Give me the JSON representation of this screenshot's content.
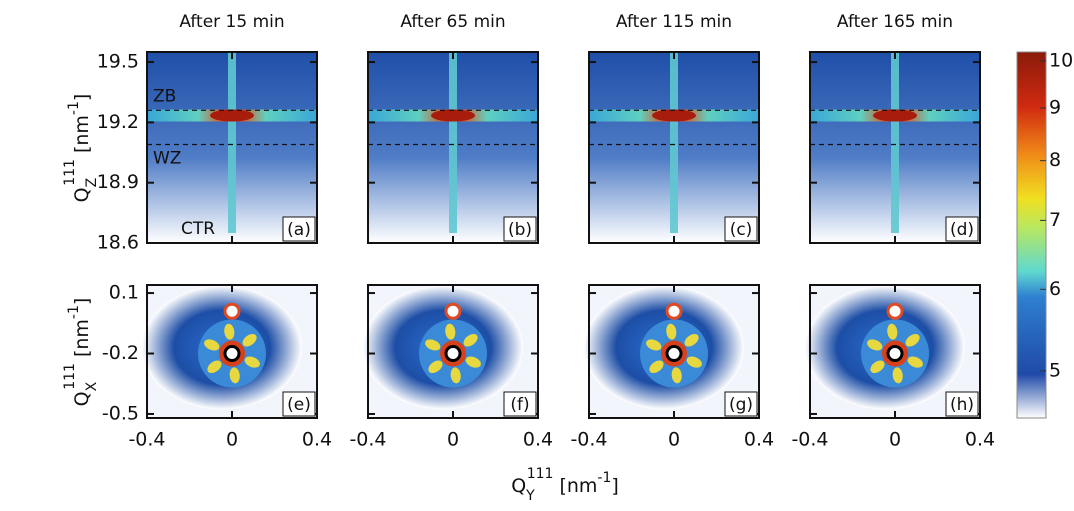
{
  "figure": {
    "x_label": {
      "symbol": "Q",
      "subscript": "Y",
      "superscript": "111",
      "unit": "[nm",
      "unit_exp": "-1",
      "unit_end": "]"
    },
    "y_label_top": {
      "symbol": "Q",
      "subscript": "Z",
      "superscript": "111",
      "unit": "[nm",
      "unit_exp": "-1",
      "unit_end": "]"
    },
    "y_label_bottom": {
      "symbol": "Q",
      "subscript": "X",
      "superscript": "111",
      "unit": "[nm",
      "unit_exp": "-1",
      "unit_end": "]"
    },
    "colorbar": {
      "clim": [
        4.5,
        10.2
      ],
      "ticks": [
        5,
        6,
        7,
        8,
        9,
        10
      ],
      "log_scale": true
    }
  },
  "chart_data": [
    {
      "type": "heatmap",
      "title": "After 15 min",
      "panel_label": "(a)",
      "xlim": [
        -0.4,
        0.4
      ],
      "xticks": [
        -0.4,
        0,
        0.4
      ],
      "ylim": [
        18.6,
        19.55
      ],
      "yticks": [
        18.6,
        18.9,
        19.2,
        19.5
      ],
      "reference_lines": [
        19.26,
        19.09
      ],
      "annotations": [
        "ZB",
        "WZ",
        "CTR"
      ]
    },
    {
      "type": "heatmap",
      "title": "After 65 min",
      "panel_label": "(b)",
      "xlim": [
        -0.4,
        0.4
      ],
      "xticks": [
        -0.4,
        0,
        0.4
      ],
      "ylim": [
        18.6,
        19.55
      ],
      "yticks": [
        18.6,
        18.9,
        19.2,
        19.5
      ],
      "reference_lines": [
        19.26,
        19.09
      ]
    },
    {
      "type": "heatmap",
      "title": "After 115 min",
      "panel_label": "(c)",
      "xlim": [
        -0.4,
        0.4
      ],
      "xticks": [
        -0.4,
        0,
        0.4
      ],
      "ylim": [
        18.6,
        19.55
      ],
      "yticks": [
        18.6,
        18.9,
        19.2,
        19.5
      ],
      "reference_lines": [
        19.26,
        19.09
      ]
    },
    {
      "type": "heatmap",
      "title": "After 165 min",
      "panel_label": "(d)",
      "xlim": [
        -0.4,
        0.4
      ],
      "xticks": [
        -0.4,
        0,
        0.4
      ],
      "ylim": [
        18.6,
        19.55
      ],
      "yticks": [
        18.6,
        18.9,
        19.2,
        19.5
      ],
      "reference_lines": [
        19.26,
        19.09
      ]
    },
    {
      "type": "heatmap",
      "panel_label": "(e)",
      "xlim": [
        -0.4,
        0.4
      ],
      "xticks": [
        -0.4,
        0,
        0.4
      ],
      "ylim": [
        -0.52,
        0.14
      ],
      "yticks": [
        -0.5,
        -0.2,
        0.1
      ],
      "markers": [
        {
          "x": 0,
          "y": 0.01,
          "color": "#e04a22"
        },
        {
          "x": 0,
          "y": -0.2,
          "color": "#000000"
        }
      ]
    },
    {
      "type": "heatmap",
      "panel_label": "(f)",
      "xlim": [
        -0.4,
        0.4
      ],
      "xticks": [
        -0.4,
        0,
        0.4
      ],
      "ylim": [
        -0.52,
        0.14
      ],
      "yticks": [
        -0.5,
        -0.2,
        0.1
      ],
      "markers": [
        {
          "x": 0,
          "y": 0.01,
          "color": "#e04a22"
        },
        {
          "x": 0,
          "y": -0.2,
          "color": "#000000"
        }
      ]
    },
    {
      "type": "heatmap",
      "panel_label": "(g)",
      "xlim": [
        -0.4,
        0.4
      ],
      "xticks": [
        -0.4,
        0,
        0.4
      ],
      "ylim": [
        -0.52,
        0.14
      ],
      "yticks": [
        -0.5,
        -0.2,
        0.1
      ],
      "markers": [
        {
          "x": 0,
          "y": 0.01,
          "color": "#e04a22"
        },
        {
          "x": 0,
          "y": -0.2,
          "color": "#000000"
        }
      ]
    },
    {
      "type": "heatmap",
      "panel_label": "(h)",
      "xlim": [
        -0.4,
        0.4
      ],
      "xticks": [
        -0.4,
        0,
        0.4
      ],
      "ylim": [
        -0.52,
        0.14
      ],
      "yticks": [
        -0.5,
        -0.2,
        0.1
      ],
      "markers": [
        {
          "x": 0,
          "y": 0.01,
          "color": "#e04a22"
        },
        {
          "x": 0,
          "y": -0.2,
          "color": "#000000"
        }
      ]
    }
  ]
}
